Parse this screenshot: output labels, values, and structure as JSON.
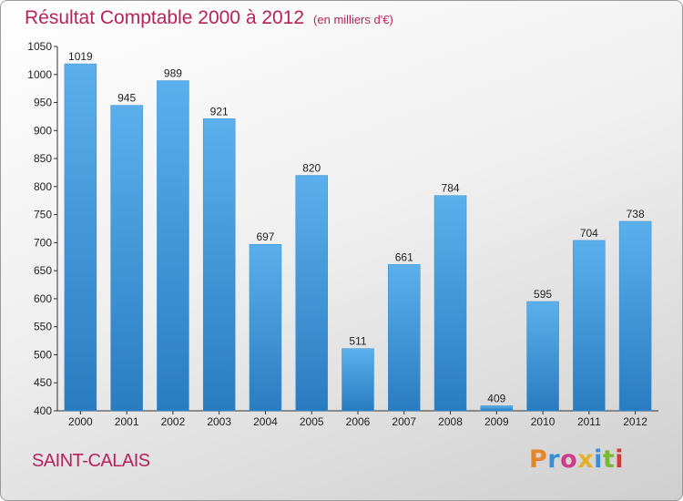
{
  "header": {
    "title": "Résultat Comptable 2000 à 2012",
    "unit": "(en milliers d'€)"
  },
  "footer": {
    "commune": "SAINT-CALAIS",
    "logo_text": "Proxiti",
    "logo_colors": [
      "#e8852a",
      "#3a8fd4",
      "#d43a8a",
      "#e8b02a",
      "#3a8fd4",
      "#7ab832",
      "#d43a3a"
    ]
  },
  "chart_data": {
    "type": "bar",
    "categories": [
      "2000",
      "2001",
      "2002",
      "2003",
      "2004",
      "2005",
      "2006",
      "2007",
      "2008",
      "2009",
      "2010",
      "2011",
      "2012"
    ],
    "values": [
      1019,
      945,
      989,
      921,
      697,
      820,
      511,
      661,
      784,
      409,
      595,
      704,
      738
    ],
    "ylim": [
      400,
      1050
    ],
    "yticks": [
      400,
      450,
      500,
      550,
      600,
      650,
      700,
      750,
      800,
      850,
      900,
      950,
      1000,
      1050
    ],
    "grid": false,
    "bar_color": "#4a9fe0"
  }
}
